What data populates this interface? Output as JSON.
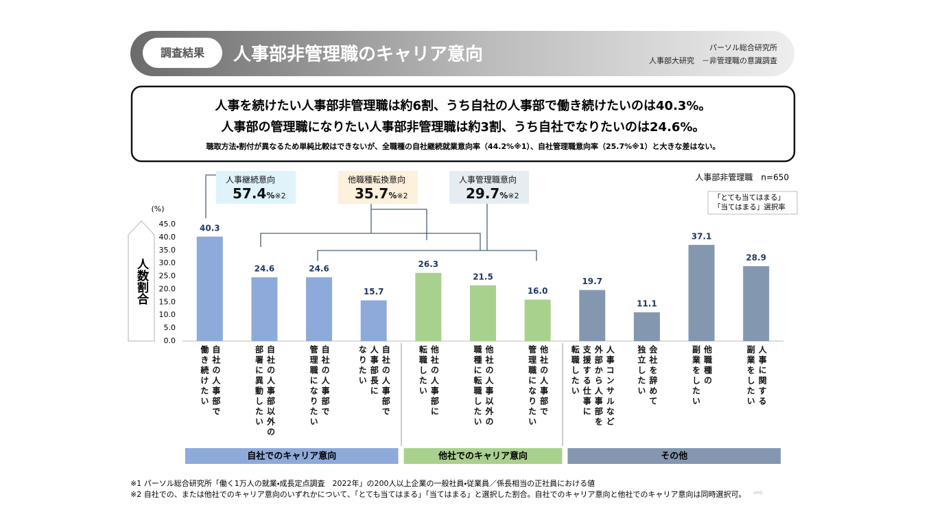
{
  "header": {
    "tag": "調査結果",
    "title": "人事部非管理職のキャリア意向",
    "source1": "パーソル総合研究所",
    "source2": "人事部大研究　－非管理職の意識調査"
  },
  "summary": {
    "line1": "人事を続けたい人事部非管理職は約6割、うち自社の人事部で働き続けたいのは40.3%。",
    "line2": "人事部の管理職になりたい人事部非管理職は約3割、うち自社でなりたいのは24.6%。",
    "note": "聴取方法・割付が異なるため単純比較はできないが、全職種の自社継続就業意向率（44.2%※1）、自社管理職意向率（25.7%※1）と大きな差はない。"
  },
  "chart_data": {
    "type": "bar",
    "ylabel": "人数割合",
    "unit": "(%)",
    "sample": "人事部非管理職　n=650",
    "legend_note": [
      "「とても当てはまる」",
      "「当てはまる」選択率"
    ],
    "categories": [
      "自社の人事部で\n働き続けたい",
      "自社の人事部以外の\n部署に異動したい",
      "自社の人事部で\n管理職になりたい",
      "自社の人事部で\n人事部長に\nなりたい",
      "他社の人事部に\n転職したい",
      "他社の人事以外の\n職種に転職したい",
      "他社の人事部で\n管理職になりたい",
      "人事コンサルなど\n外部から人事部を\n支援する仕事に\n転職したい",
      "会社を辞めて\n独立したい",
      "他職種の\n副業をしたい",
      "人事に関する\n副業をしたい"
    ],
    "series": [
      {
        "name": "自社でのキャリア意向",
        "color": "#8eaadb",
        "values": [
          40.3,
          24.6,
          24.6,
          15.7,
          null,
          null,
          null,
          null,
          null,
          null,
          null
        ],
        "value_labels": [
          "40.3",
          "24.6",
          "24.6",
          "15.7",
          null,
          null,
          null,
          null,
          null,
          null,
          null
        ]
      },
      {
        "name": "他社でのキャリア意向",
        "color": "#a9d18e",
        "values": [
          null,
          null,
          null,
          null,
          26.3,
          21.5,
          16.0,
          null,
          null,
          null,
          null
        ],
        "value_labels": [
          null,
          null,
          null,
          null,
          "26.3",
          "21.5",
          "16.0",
          null,
          null,
          null,
          null
        ]
      },
      {
        "name": "その他",
        "color": "#8497b0",
        "values": [
          null,
          null,
          null,
          null,
          null,
          null,
          null,
          19.7,
          11.1,
          37.1,
          28.9
        ],
        "value_labels": [
          null,
          null,
          null,
          null,
          null,
          null,
          null,
          "19.7",
          "11.1",
          "37.1",
          "28.9"
        ]
      }
    ],
    "callouts": [
      {
        "label": "人事継続意向",
        "value": 57.4,
        "unit": "%",
        "note": "※2",
        "color": "#dff3fb"
      },
      {
        "label": "他職種転換意向",
        "value": 35.7,
        "unit": "%",
        "note": "※2",
        "color": "#fdf0dc"
      },
      {
        "label": "人事管理職意向",
        "value": 29.7,
        "unit": "%",
        "note": "※2",
        "color": "#e6edf2"
      }
    ],
    "ylim": [
      0,
      45
    ],
    "yticks": [
      {
        "value": 0,
        "label": "0.0"
      },
      {
        "value": 5,
        "label": "5.0"
      },
      {
        "value": 10,
        "label": "10.0"
      },
      {
        "value": 15,
        "label": "15.0"
      },
      {
        "value": 20,
        "label": "20.0"
      },
      {
        "value": 25,
        "label": "25.0"
      },
      {
        "value": 30,
        "label": "30.0"
      },
      {
        "value": 35,
        "label": "35.0"
      },
      {
        "value": 40,
        "label": "40.0"
      },
      {
        "value": 45,
        "label": "45.0"
      }
    ],
    "grid": false
  },
  "footnotes": [
    "※1 パーソル総合研究所「働く1万人の就業・成長定点調査　2022年」の200人以上企業の一般社員・従業員／係長相当の正社員における値",
    "※2 自社での、または他社でのキャリア意向のいずれかについて、「とても当てはまる」「当てはまる」と選択した割合。自社でのキャリア意向と他社でのキャリア意向は同時選択可。"
  ],
  "watermark": "ved."
}
